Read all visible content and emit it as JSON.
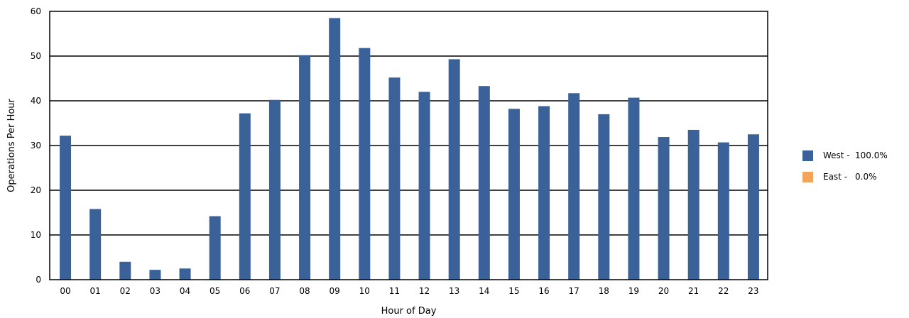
{
  "chart_data": {
    "type": "bar",
    "xlabel": "Hour of Day",
    "ylabel": "Operations Per Hour",
    "ylim": [
      0,
      60
    ],
    "yticks": [
      0,
      10,
      20,
      30,
      40,
      50,
      60
    ],
    "grid": true,
    "legend_placement": "right",
    "categories": [
      "00",
      "01",
      "02",
      "03",
      "04",
      "05",
      "06",
      "07",
      "08",
      "09",
      "10",
      "11",
      "12",
      "13",
      "14",
      "15",
      "16",
      "17",
      "18",
      "19",
      "20",
      "21",
      "22",
      "23"
    ],
    "series": [
      {
        "name": "West",
        "legend_label": "West -",
        "share": "100.0%",
        "color": "#3a6299",
        "values": [
          32.2,
          15.8,
          4.0,
          2.2,
          2.5,
          14.2,
          37.2,
          40.2,
          50.2,
          58.5,
          51.8,
          45.2,
          42.0,
          49.3,
          43.3,
          38.2,
          38.8,
          41.7,
          37.0,
          40.7,
          31.9,
          33.5,
          30.7,
          32.5
        ]
      },
      {
        "name": "East",
        "legend_label": "East -",
        "share": "0.0%",
        "color": "#f2a45a",
        "values": [
          0,
          0,
          0,
          0,
          0,
          0,
          0,
          0,
          0,
          0,
          0,
          0,
          0,
          0,
          0,
          0,
          0,
          0,
          0,
          0,
          0,
          0,
          0,
          0
        ]
      }
    ]
  }
}
